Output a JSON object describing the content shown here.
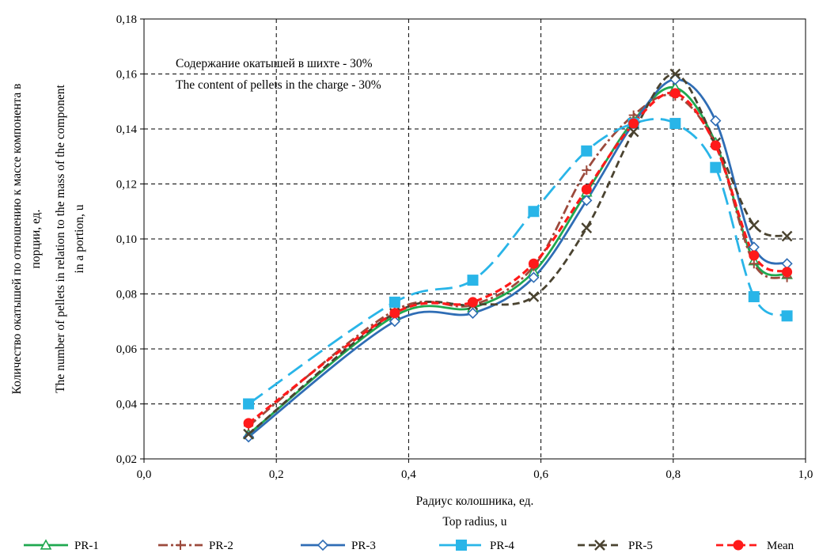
{
  "chart_data": {
    "type": "line",
    "annotation": [
      "Содержание  окатышей в шихте  - 30%",
      "The content of pellets in the charge - 30%"
    ],
    "xlabel": [
      "Радиус колошника,  ед.",
      "Top radius, u"
    ],
    "ylabel": [
      "Количество окатышей по отношению к массе компонента в",
      "порции, ед.",
      "The number of pellets in relation to the mass of the component",
      "in a portion, u"
    ],
    "xlim": [
      0,
      1
    ],
    "ylim": [
      0.02,
      0.18
    ],
    "xticks": [
      0,
      0.2,
      0.4,
      0.6,
      0.8,
      1.0
    ],
    "xtick_labels": [
      "0,0",
      "0,2",
      "0,4",
      "0,6",
      "0,8",
      "1,0"
    ],
    "yticks": [
      0.02,
      0.04,
      0.06,
      0.08,
      0.1,
      0.12,
      0.14,
      0.16,
      0.18
    ],
    "ytick_labels": [
      "0,02",
      "0,04",
      "0,06",
      "0,08",
      "0,10",
      "0,12",
      "0,14",
      "0,16",
      "0,18"
    ],
    "grid": true,
    "legend_position": "bottom",
    "x": [
      0.158,
      0.379,
      0.497,
      0.589,
      0.669,
      0.74,
      0.803,
      0.864,
      0.922,
      0.972
    ],
    "series": [
      {
        "name": "PR-1",
        "color": "#1fa84f",
        "dash": "solid",
        "marker": "triangle",
        "values": [
          0.029,
          0.072,
          0.075,
          0.088,
          0.117,
          0.143,
          0.155,
          0.135,
          0.092,
          0.087
        ]
      },
      {
        "name": "PR-2",
        "color": "#9c4a3c",
        "dash": "dashdot",
        "marker": "plus",
        "values": [
          0.032,
          0.074,
          0.076,
          0.09,
          0.125,
          0.145,
          0.152,
          0.134,
          0.091,
          0.086
        ]
      },
      {
        "name": "PR-3",
        "color": "#2f6db5",
        "dash": "solid",
        "marker": "diamond",
        "values": [
          0.028,
          0.07,
          0.073,
          0.086,
          0.114,
          0.142,
          0.158,
          0.143,
          0.097,
          0.091
        ]
      },
      {
        "name": "PR-4",
        "color": "#29b5e8",
        "dash": "longdash",
        "marker": "square",
        "values": [
          0.04,
          0.077,
          0.085,
          0.11,
          0.132,
          0.142,
          0.142,
          0.126,
          0.079,
          0.072
        ]
      },
      {
        "name": "PR-5",
        "color": "#4a4330",
        "dash": "dash",
        "marker": "x",
        "values": [
          0.029,
          0.073,
          0.076,
          0.079,
          0.104,
          0.139,
          0.16,
          0.135,
          0.105,
          0.101
        ]
      },
      {
        "name": "Mean",
        "color": "#ff1a1a",
        "dash": "dash",
        "marker": "circle",
        "values": [
          0.033,
          0.073,
          0.077,
          0.091,
          0.118,
          0.142,
          0.153,
          0.134,
          0.094,
          0.088
        ]
      }
    ]
  }
}
